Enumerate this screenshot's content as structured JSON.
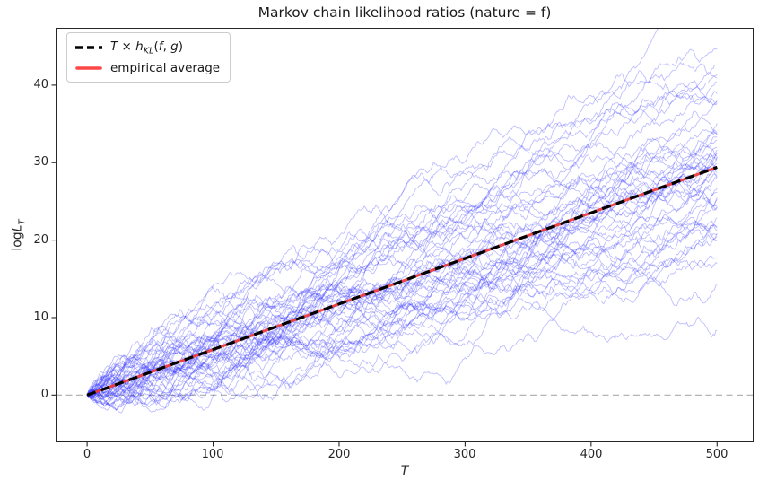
{
  "title": "Markov chain likelihood ratios (nature = f)",
  "axis": {
    "xlabel": "T",
    "ylabel_parts": {
      "log": "log",
      "L": "L",
      "sub": "T"
    }
  },
  "legend": {
    "kl": {
      "parts": {
        "T": "T",
        "times": " × ",
        "h": "h",
        "sub": "KL",
        "open": "(",
        "f": "f",
        "comma": ", ",
        "g": "g",
        "close": ")"
      },
      "color": "#000000",
      "style": "dashed"
    },
    "avg": {
      "label": "empirical average",
      "color": "#ff4040"
    }
  },
  "chart_data": {
    "type": "line",
    "title": "Markov chain likelihood ratios (nature = f)",
    "xlabel": "T",
    "ylabel": "log L_T",
    "xlim": [
      -25,
      529
    ],
    "ylim": [
      -6.1,
      47.4
    ],
    "xticks": [
      0,
      100,
      200,
      300,
      400,
      500
    ],
    "yticks": [
      0,
      10,
      20,
      30,
      40
    ],
    "xtick_labels": [
      "0",
      "100",
      "200",
      "300",
      "400",
      "500"
    ],
    "ytick_labels": [
      "0",
      "10",
      "20",
      "30",
      "40"
    ],
    "grid": false,
    "legend_position": "upper left",
    "zero_line": {
      "y": 0,
      "color": "#ababab",
      "dash": [
        7,
        4.5
      ],
      "width": 1.2
    },
    "kl_line": {
      "label": "T × h_KL(f, g)",
      "x": [
        0,
        500
      ],
      "y": [
        0,
        29.4
      ],
      "slope": 0.0588,
      "color": "#000000",
      "width": 3.2,
      "dash": [
        10,
        6.5
      ]
    },
    "empirical_average": {
      "label": "empirical average",
      "x": [
        0,
        500
      ],
      "y": [
        0,
        29.4
      ],
      "color": "#f03535",
      "width": 3,
      "opacity": 0.9
    },
    "trajectories": {
      "count": 50,
      "steps": 500,
      "start_value": 0,
      "mean_slope": 0.0588,
      "endpoint_mean": 29.4,
      "endpoint_range": [
        13,
        45
      ],
      "min_value": -3.5,
      "color": "#2a2aff",
      "opacity": 0.3,
      "width": 0.9,
      "generator": {
        "seed": 1337,
        "up_step": 0.22,
        "down_step": -0.1,
        "switch_prob": 0.18,
        "noise_std": 0.16
      }
    }
  }
}
